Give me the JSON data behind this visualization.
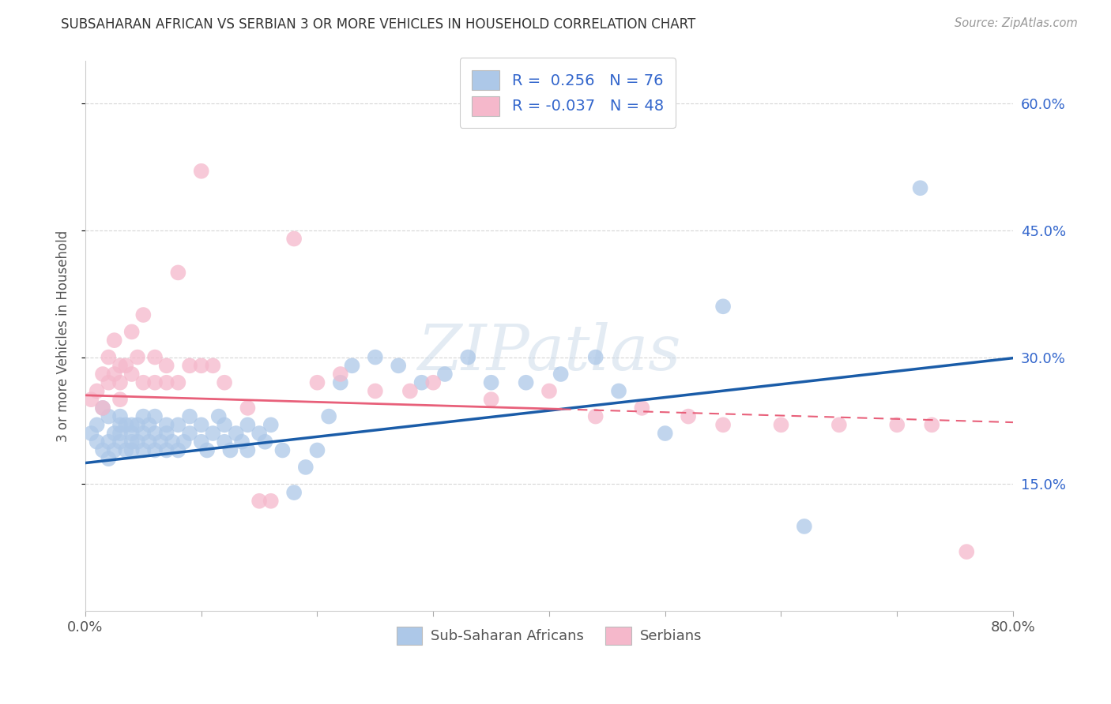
{
  "title": "SUBSAHARAN AFRICAN VS SERBIAN 3 OR MORE VEHICLES IN HOUSEHOLD CORRELATION CHART",
  "source": "Source: ZipAtlas.com",
  "ylabel": "3 or more Vehicles in Household",
  "xmin": 0.0,
  "xmax": 0.8,
  "ymin": 0.0,
  "ymax": 0.65,
  "yticks_right": [
    0.15,
    0.3,
    0.45,
    0.6
  ],
  "ytick_labels_right": [
    "15.0%",
    "30.0%",
    "45.0%",
    "60.0%"
  ],
  "blue_color": "#adc8e8",
  "pink_color": "#f5b8cb",
  "blue_line_color": "#1a5ca8",
  "pink_line_color": "#e8607a",
  "watermark": "ZIPatlas",
  "blue_regression": {
    "slope": 0.155,
    "intercept": 0.175
  },
  "pink_regression": {
    "slope": -0.04,
    "intercept": 0.255
  },
  "blue_scatter_x": [
    0.005,
    0.01,
    0.01,
    0.015,
    0.015,
    0.02,
    0.02,
    0.02,
    0.025,
    0.025,
    0.03,
    0.03,
    0.03,
    0.03,
    0.035,
    0.035,
    0.04,
    0.04,
    0.04,
    0.04,
    0.045,
    0.045,
    0.05,
    0.05,
    0.05,
    0.055,
    0.055,
    0.06,
    0.06,
    0.06,
    0.065,
    0.07,
    0.07,
    0.07,
    0.075,
    0.08,
    0.08,
    0.085,
    0.09,
    0.09,
    0.1,
    0.1,
    0.105,
    0.11,
    0.115,
    0.12,
    0.12,
    0.125,
    0.13,
    0.135,
    0.14,
    0.14,
    0.15,
    0.155,
    0.16,
    0.17,
    0.18,
    0.19,
    0.2,
    0.21,
    0.22,
    0.23,
    0.25,
    0.27,
    0.29,
    0.31,
    0.33,
    0.35,
    0.38,
    0.41,
    0.44,
    0.46,
    0.5,
    0.55,
    0.62,
    0.72
  ],
  "blue_scatter_y": [
    0.21,
    0.2,
    0.22,
    0.19,
    0.24,
    0.18,
    0.2,
    0.23,
    0.21,
    0.19,
    0.2,
    0.22,
    0.21,
    0.23,
    0.19,
    0.22,
    0.2,
    0.22,
    0.21,
    0.19,
    0.2,
    0.22,
    0.19,
    0.21,
    0.23,
    0.2,
    0.22,
    0.19,
    0.21,
    0.23,
    0.2,
    0.19,
    0.22,
    0.21,
    0.2,
    0.19,
    0.22,
    0.2,
    0.21,
    0.23,
    0.22,
    0.2,
    0.19,
    0.21,
    0.23,
    0.2,
    0.22,
    0.19,
    0.21,
    0.2,
    0.22,
    0.19,
    0.21,
    0.2,
    0.22,
    0.19,
    0.14,
    0.17,
    0.19,
    0.23,
    0.27,
    0.29,
    0.3,
    0.29,
    0.27,
    0.28,
    0.3,
    0.27,
    0.27,
    0.28,
    0.3,
    0.26,
    0.21,
    0.36,
    0.1,
    0.5
  ],
  "pink_scatter_x": [
    0.005,
    0.01,
    0.015,
    0.015,
    0.02,
    0.02,
    0.025,
    0.025,
    0.03,
    0.03,
    0.03,
    0.035,
    0.04,
    0.04,
    0.045,
    0.05,
    0.05,
    0.06,
    0.06,
    0.07,
    0.07,
    0.08,
    0.08,
    0.09,
    0.1,
    0.1,
    0.11,
    0.12,
    0.14,
    0.15,
    0.16,
    0.18,
    0.2,
    0.22,
    0.25,
    0.28,
    0.3,
    0.35,
    0.4,
    0.44,
    0.48,
    0.52,
    0.55,
    0.6,
    0.65,
    0.7,
    0.73,
    0.76
  ],
  "pink_scatter_y": [
    0.25,
    0.26,
    0.24,
    0.28,
    0.27,
    0.3,
    0.28,
    0.32,
    0.29,
    0.27,
    0.25,
    0.29,
    0.28,
    0.33,
    0.3,
    0.27,
    0.35,
    0.3,
    0.27,
    0.29,
    0.27,
    0.27,
    0.4,
    0.29,
    0.29,
    0.52,
    0.29,
    0.27,
    0.24,
    0.13,
    0.13,
    0.44,
    0.27,
    0.28,
    0.26,
    0.26,
    0.27,
    0.25,
    0.26,
    0.23,
    0.24,
    0.23,
    0.22,
    0.22,
    0.22,
    0.22,
    0.22,
    0.07
  ]
}
